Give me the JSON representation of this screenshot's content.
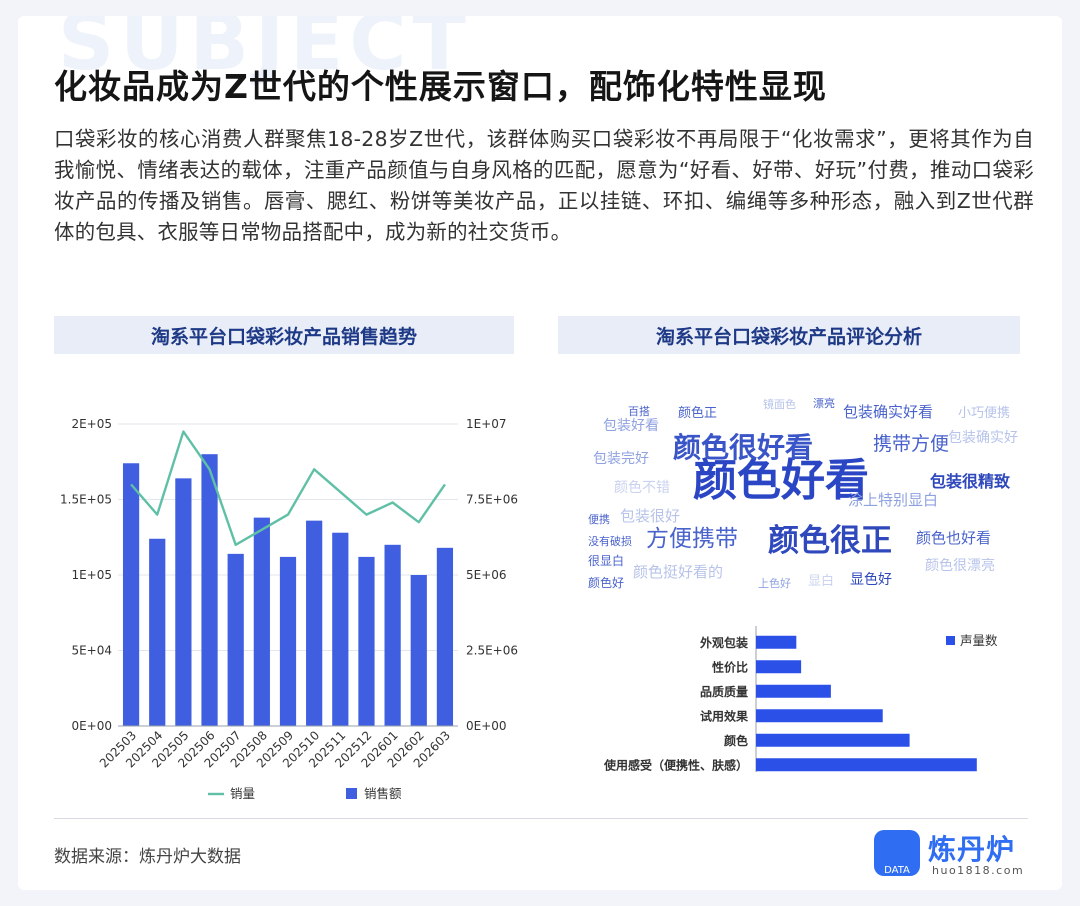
{
  "header": {
    "bg_word": "SUBJECT",
    "title": "化妆品成为Z世代的个性展示窗口，配饰化特性显现",
    "intro": "口袋彩妆的核心消费人群聚焦18-28岁Z世代，该群体购买口袋彩妆不再局限于“化妆需求”，更将其作为自我愉悦、情绪表达的载体，注重产品颜值与自身风格的匹配，愿意为“好看、好带、好玩”付费，推动口袋彩妆产品的传播及销售。唇膏、腮红、粉饼等美妆产品，正以挂链、环扣、编绳等多种形态，融入到Z世代群体的包具、衣服等日常物品搭配中，成为新的社交货币。"
  },
  "left_panel": {
    "title": "淘系平台口袋彩妆产品销售趋势"
  },
  "right_panel": {
    "title": "淘系平台口袋彩妆产品评论分析"
  },
  "colors": {
    "bar": "#3f5fe0",
    "line": "#5fc0a6",
    "hbar": "#2b50e8",
    "panel_bg": "#e9edf8",
    "title_blue": "#1e3a86",
    "brand": "#2f6df2"
  },
  "chart_data": [
    {
      "type": "bar+line",
      "categories": [
        "202503",
        "202504",
        "202505",
        "202506",
        "202507",
        "202508",
        "202509",
        "202510",
        "202511",
        "202512",
        "202601",
        "202602",
        "202603"
      ],
      "series": [
        {
          "name": "销量",
          "type": "line",
          "axis": "left",
          "values": [
            160000,
            140000,
            195000,
            170000,
            120000,
            130000,
            140000,
            170000,
            155000,
            140000,
            148000,
            135000,
            160000
          ]
        },
        {
          "name": "销售额",
          "type": "bar",
          "axis": "right",
          "values": [
            8700000,
            6200000,
            8200000,
            9000000,
            5700000,
            6900000,
            5600000,
            6800000,
            6400000,
            5600000,
            6000000,
            5000000,
            5900000
          ]
        }
      ],
      "left_axis": {
        "ylim": [
          0,
          200000
        ],
        "ticks": [
          "0E+00",
          "5E+04",
          "1E+05",
          "1.5E+05",
          "2E+05"
        ]
      },
      "right_axis": {
        "ylim": [
          0,
          10000000
        ],
        "ticks": [
          "0E+00",
          "2.5E+06",
          "5E+06",
          "7.5E+06",
          "1E+07"
        ]
      },
      "legend": [
        "销量",
        "销售额"
      ],
      "legend_position": "bottom",
      "grid": true
    },
    {
      "type": "bar",
      "orientation": "horizontal",
      "categories": [
        "外观包装",
        "性价比",
        "品质质量",
        "试用效果",
        "颜色",
        "使用感受（便携性、肤感）"
      ],
      "series": [
        {
          "name": "声量数",
          "values": [
            42,
            47,
            78,
            132,
            160,
            230
          ]
        }
      ],
      "legend": [
        "声量数"
      ],
      "legend_position": "top-right",
      "grid": false
    }
  ],
  "wordcloud": [
    {
      "text": "颜色好看",
      "size": 44,
      "color": "#2b46c4",
      "bold": true
    },
    {
      "text": "颜色很好看",
      "size": 28,
      "color": "#3a55c8",
      "bold": true
    },
    {
      "text": "颜色很正",
      "size": 31,
      "color": "#2f49bd",
      "bold": true
    },
    {
      "text": "方便携带",
      "size": 23,
      "color": "#4a63cc",
      "bold": false
    },
    {
      "text": "携带方便",
      "size": 19,
      "color": "#4a63cc",
      "bold": false
    },
    {
      "text": "包装很精致",
      "size": 16,
      "color": "#2f49bd",
      "bold": true
    },
    {
      "text": "包装确实好看",
      "size": 15,
      "color": "#4a63cc",
      "bold": false
    },
    {
      "text": "涂上特别显白",
      "size": 15,
      "color": "#8fa2e0",
      "bold": false
    },
    {
      "text": "包装好看",
      "size": 14,
      "color": "#8fa2e0",
      "bold": false
    },
    {
      "text": "包装完好",
      "size": 14,
      "color": "#8fa2e0",
      "bold": false
    },
    {
      "text": "颜色正",
      "size": 13,
      "color": "#4a63cc",
      "bold": false
    },
    {
      "text": "百搭",
      "size": 11,
      "color": "#4a63cc",
      "bold": false
    },
    {
      "text": "镜面色",
      "size": 11,
      "color": "#b7c3ea",
      "bold": false
    },
    {
      "text": "漂亮",
      "size": 11,
      "color": "#4a63cc",
      "bold": false
    },
    {
      "text": "小巧便携",
      "size": 13,
      "color": "#b7c3ea",
      "bold": false
    },
    {
      "text": "包装确实好",
      "size": 14,
      "color": "#b7c3ea",
      "bold": false
    },
    {
      "text": "颜色不错",
      "size": 14,
      "color": "#c9d2ef",
      "bold": false
    },
    {
      "text": "便携",
      "size": 11,
      "color": "#4a63cc",
      "bold": false
    },
    {
      "text": "包装很好",
      "size": 15,
      "color": "#b7c3ea",
      "bold": false
    },
    {
      "text": "没有破损",
      "size": 11,
      "color": "#4a63cc",
      "bold": false
    },
    {
      "text": "很显白",
      "size": 12,
      "color": "#4a63cc",
      "bold": false
    },
    {
      "text": "颜色好",
      "size": 12,
      "color": "#4a63cc",
      "bold": false
    },
    {
      "text": "颜色挺好看的",
      "size": 15,
      "color": "#b7c3ea",
      "bold": false
    },
    {
      "text": "上色好",
      "size": 11,
      "color": "#8fa2e0",
      "bold": false
    },
    {
      "text": "显白",
      "size": 13,
      "color": "#c9d2ef",
      "bold": false
    },
    {
      "text": "显色好",
      "size": 14,
      "color": "#2f49bd",
      "bold": false
    },
    {
      "text": "颜色也好看",
      "size": 15,
      "color": "#4a63cc",
      "bold": false
    },
    {
      "text": "颜色很漂亮",
      "size": 14,
      "color": "#b7c3ea",
      "bold": false
    }
  ],
  "footer": {
    "source": "数据来源：炼丹炉大数据",
    "logo_badge": "DATA",
    "logo_name": "炼丹炉",
    "logo_url": "huo1818.com"
  }
}
